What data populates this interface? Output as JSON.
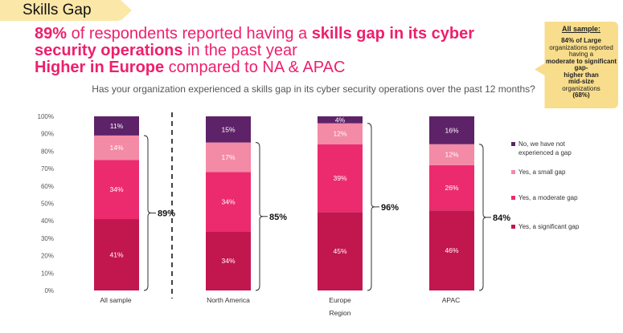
{
  "header": {
    "tab_label": "Skills Gap"
  },
  "headline": {
    "line1_pct": "89%",
    "line1_mid": " of respondents reported having a ",
    "line1_bold": "skills gap in its cyber security operations",
    "line1_end": " in the past year",
    "line2_bold": "Higher in Europe",
    "line2_end": " compared to NA & APAC"
  },
  "callout": {
    "title": "All sample:",
    "line_a": "84% of Large",
    "line_b": "organizations reported having a",
    "line_c": "moderate to significant gap-",
    "line_d": "higher than",
    "line_e": "mid-size",
    "line_f": "organizations",
    "line_g": "(68%)"
  },
  "colors": {
    "significant": "#c2164f",
    "moderate": "#ec2b6e",
    "small": "#f38aa6",
    "none": "#5e2268",
    "europe_highlight": "#e8211b"
  },
  "chart_data": {
    "type": "bar",
    "stacked": true,
    "title": "Has your organization experienced a skills gap in its cyber security operations over the past 12 months?",
    "xlabel": "Region",
    "ylabel": "",
    "ylim": [
      0,
      100
    ],
    "y_ticks": [
      "0%",
      "10%",
      "20%",
      "30%",
      "40%",
      "50%",
      "60%",
      "70%",
      "80%",
      "90%",
      "100%"
    ],
    "categories": [
      "All sample",
      "North America",
      "Europe",
      "APAC"
    ],
    "series": [
      {
        "name": "Yes, a significant gap",
        "values": [
          41,
          34,
          45,
          46
        ]
      },
      {
        "name": "Yes, a moderate gap",
        "values": [
          34,
          34,
          39,
          26
        ]
      },
      {
        "name": "Yes, a small gap",
        "values": [
          14,
          17,
          12,
          12
        ]
      },
      {
        "name": "No, we have not experienced a gap",
        "values": [
          11,
          15,
          4,
          16
        ]
      }
    ],
    "value_labels": [
      [
        "41%",
        "34%",
        "45%",
        "46%"
      ],
      [
        "34%",
        "34%",
        "39%",
        "26%"
      ],
      [
        "14%",
        "17%",
        "12%",
        "12%"
      ],
      [
        "11%",
        "15%",
        "4%",
        "16%"
      ]
    ],
    "brace_labels": [
      "89%",
      "85%",
      "96%",
      "84%"
    ],
    "grid": false,
    "legend_position": "right",
    "legend_lines": [
      [
        "No, we have not",
        "experienced a gap"
      ],
      [
        "Yes, a small gap"
      ],
      [
        "Yes, a moderate gap"
      ],
      [
        "Yes, a significant gap"
      ]
    ]
  }
}
